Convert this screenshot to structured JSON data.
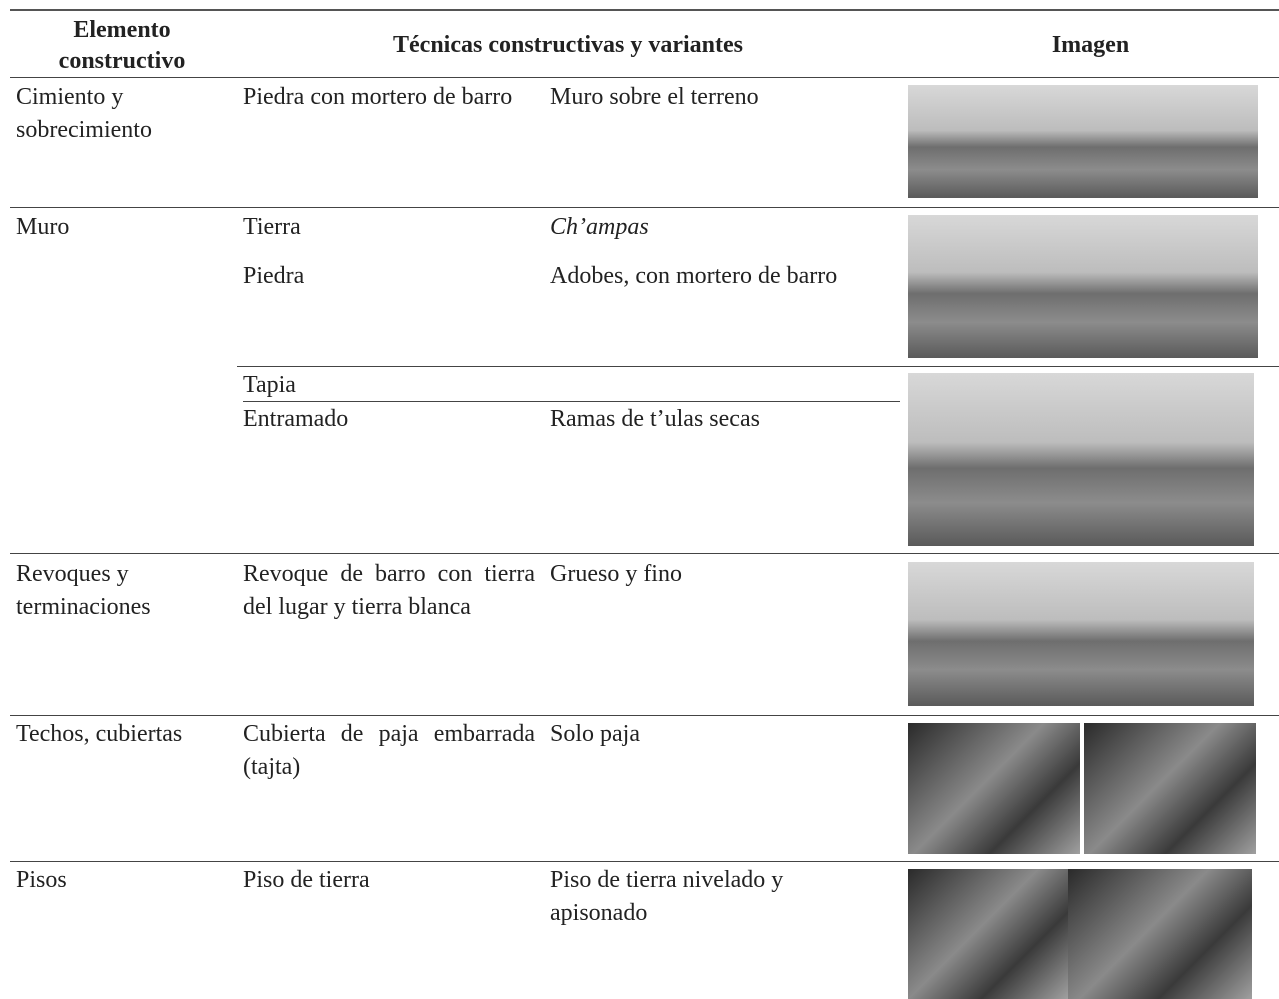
{
  "table": {
    "header": [
      "Elemento constructivo",
      "Técnicas constructivas y variantes",
      "Imagen"
    ],
    "rows": [
      {
        "element": "Cimiento y sobrecimiento",
        "techniques": [
          {
            "technique": "Piedra con mortero de barro",
            "variant": "Muro sobre el terreno"
          }
        ]
      },
      {
        "element": "Muro",
        "techniques": [
          {
            "technique": "Tierra",
            "variant": "Ch’ampas"
          },
          {
            "technique": "Piedra",
            "variant": "Adobes, con mortero de barro"
          },
          {
            "technique": "Tapia"
          },
          {
            "technique": "Entramado",
            "variant": "Ramas de t’ulas secas"
          }
        ]
      },
      {
        "element": "Revoques y terminaciones",
        "techniques": [
          {
            "technique": "Revoque de barro con tierra del lugar y tierra blanca",
            "variant": "Grueso y fino"
          }
        ]
      },
      {
        "element": "Techos, cubiertas",
        "techniques": [
          {
            "technique": "Cubierta de paja embarrada (tajta)",
            "variant": "Solo paja"
          }
        ]
      },
      {
        "element": "Pisos",
        "techniques": [
          {
            "technique": "Piso de tierra",
            "variant": "Piso de tierra nivelado y apisonado"
          }
        ]
      }
    ]
  }
}
